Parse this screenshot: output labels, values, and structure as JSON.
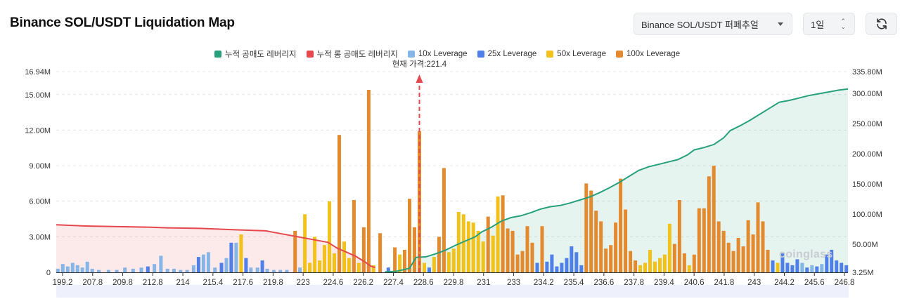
{
  "header": {
    "title": "Binance SOL/USDT Liquidation Map",
    "pair_select": "Binance SOL/USDT 퍼페추얼",
    "period_select": "1일"
  },
  "colors": {
    "cumShort": "#26a17b",
    "cumLong": "#e5484d",
    "lev10": "#86b6e8",
    "lev25": "#4f7fe8",
    "lev50": "#f2c21b",
    "lev100": "#e38a2f"
  },
  "chart_data": {
    "type": "bar",
    "legend": [
      {
        "key": "cumShort",
        "label": "누적 공매도 레버리지",
        "color": "#26a17b"
      },
      {
        "key": "cumLong",
        "label": "누적 롱 공매도 레버리지",
        "color": "#e5484d"
      },
      {
        "key": "lev10",
        "label": "10x Leverage",
        "color": "#86b6e8"
      },
      {
        "key": "lev25",
        "label": "25x Leverage",
        "color": "#4f7fe8"
      },
      {
        "key": "lev50",
        "label": "50x Leverage",
        "color": "#f2c21b"
      },
      {
        "key": "lev100",
        "label": "100x Leverage",
        "color": "#e38a2f"
      }
    ],
    "current_price_label": "현재 가격:221.4",
    "current_price": 221.4,
    "x_range": [
      199.2,
      247.6
    ],
    "x_ticks": [
      "199.2",
      "207.8",
      "209.8",
      "212.8",
      "214",
      "215.4",
      "217.6",
      "219.8",
      "223",
      "224.6",
      "226.2",
      "227.4",
      "228.6",
      "229.8",
      "231",
      "233",
      "234.2",
      "235.4",
      "236.6",
      "237.8",
      "239.4",
      "240.6",
      "241.8",
      "243",
      "244.2",
      "245.6",
      "246.8"
    ],
    "y_left": {
      "range": [
        0,
        16.94
      ],
      "ticks": [
        0,
        3,
        6,
        9,
        12,
        15,
        16.94
      ],
      "tick_labels": [
        "0",
        "3.00M",
        "6.00M",
        "9.00M",
        "12.00M",
        "15.00M",
        "16.94M"
      ]
    },
    "y_right": {
      "range": [
        3.25,
        335.8
      ],
      "ticks": [
        3.25,
        50,
        100,
        150,
        200,
        250,
        300,
        335.8
      ],
      "tick_labels": [
        "3.25M",
        "50.00M",
        "100.00M",
        "150.00M",
        "200.00M",
        "250.00M",
        "300.00M",
        "335.80M"
      ]
    },
    "bars": [
      {
        "x": 199.3,
        "lev": "10x",
        "v": 0.3
      },
      {
        "x": 199.6,
        "lev": "10x",
        "v": 0.7
      },
      {
        "x": 199.9,
        "lev": "10x",
        "v": 0.5
      },
      {
        "x": 200.2,
        "lev": "10x",
        "v": 0.8
      },
      {
        "x": 200.5,
        "lev": "10x",
        "v": 0.6
      },
      {
        "x": 200.8,
        "lev": "10x",
        "v": 0.4
      },
      {
        "x": 201.1,
        "lev": "10x",
        "v": 0.9
      },
      {
        "x": 201.4,
        "lev": "10x",
        "v": 0.3
      },
      {
        "x": 201.8,
        "lev": "10x",
        "v": 0.2
      },
      {
        "x": 202.4,
        "lev": "10x",
        "v": 0.2
      },
      {
        "x": 202.9,
        "lev": "10x",
        "v": 0.2
      },
      {
        "x": 203.4,
        "lev": "10x",
        "v": 0.4
      },
      {
        "x": 203.9,
        "lev": "10x",
        "v": 0.3
      },
      {
        "x": 204.4,
        "lev": "10x",
        "v": 0.4
      },
      {
        "x": 204.8,
        "lev": "25x",
        "v": 0.5
      },
      {
        "x": 205.2,
        "lev": "10x",
        "v": 0.7
      },
      {
        "x": 205.6,
        "lev": "10x",
        "v": 1.4
      },
      {
        "x": 206.0,
        "lev": "10x",
        "v": 0.3
      },
      {
        "x": 206.4,
        "lev": "10x",
        "v": 0.3
      },
      {
        "x": 206.8,
        "lev": "10x",
        "v": 0.2
      },
      {
        "x": 207.2,
        "lev": "10x",
        "v": 0.2
      },
      {
        "x": 207.6,
        "lev": "10x",
        "v": 0.6
      },
      {
        "x": 207.9,
        "lev": "25x",
        "v": 1.3
      },
      {
        "x": 208.2,
        "lev": "10x",
        "v": 1.5
      },
      {
        "x": 208.5,
        "lev": "10x",
        "v": 1.7
      },
      {
        "x": 208.9,
        "lev": "10x",
        "v": 0.4
      },
      {
        "x": 209.3,
        "lev": "25x",
        "v": 0.8
      },
      {
        "x": 209.6,
        "lev": "10x",
        "v": 1.2
      },
      {
        "x": 209.9,
        "lev": "25x",
        "v": 2.5
      },
      {
        "x": 210.2,
        "lev": "10x",
        "v": 2.5
      },
      {
        "x": 210.5,
        "lev": "50x",
        "v": 3.2
      },
      {
        "x": 210.8,
        "lev": "25x",
        "v": 1.2
      },
      {
        "x": 211.1,
        "lev": "10x",
        "v": 0.4
      },
      {
        "x": 211.5,
        "lev": "10x",
        "v": 0.4
      },
      {
        "x": 211.8,
        "lev": "25x",
        "v": 1.0
      },
      {
        "x": 212.1,
        "lev": "10x",
        "v": 0.3
      },
      {
        "x": 212.5,
        "lev": "10x",
        "v": 0.2
      },
      {
        "x": 212.9,
        "lev": "10x",
        "v": 0.2
      },
      {
        "x": 213.3,
        "lev": "10x",
        "v": 0.2
      },
      {
        "x": 213.8,
        "lev": "100x",
        "v": 3.5
      },
      {
        "x": 214.1,
        "lev": "10x",
        "v": 0.4
      },
      {
        "x": 214.4,
        "lev": "50x",
        "v": 4.9
      },
      {
        "x": 214.7,
        "lev": "50x",
        "v": 0.8
      },
      {
        "x": 215.0,
        "lev": "50x",
        "v": 3.0
      },
      {
        "x": 215.3,
        "lev": "50x",
        "v": 1.0
      },
      {
        "x": 215.6,
        "lev": "50x",
        "v": 2.3
      },
      {
        "x": 215.9,
        "lev": "50x",
        "v": 6.0
      },
      {
        "x": 216.2,
        "lev": "50x",
        "v": 1.6
      },
      {
        "x": 216.5,
        "lev": "100x",
        "v": 11.6
      },
      {
        "x": 216.8,
        "lev": "50x",
        "v": 2.6
      },
      {
        "x": 217.1,
        "lev": "50x",
        "v": 1.2
      },
      {
        "x": 217.4,
        "lev": "100x",
        "v": 6.1
      },
      {
        "x": 217.7,
        "lev": "50x",
        "v": 0.8
      },
      {
        "x": 218.0,
        "lev": "100x",
        "v": 3.8
      },
      {
        "x": 218.3,
        "lev": "100x",
        "v": 15.4
      },
      {
        "x": 218.6,
        "lev": "50x",
        "v": 0.6
      },
      {
        "x": 219.0,
        "lev": "100x",
        "v": 3.3
      },
      {
        "x": 219.5,
        "lev": "25x",
        "v": 0.4
      },
      {
        "x": 219.9,
        "lev": "100x",
        "v": 2.1
      },
      {
        "x": 220.2,
        "lev": "50x",
        "v": 1.5
      },
      {
        "x": 220.5,
        "lev": "100x",
        "v": 1.9
      },
      {
        "x": 220.8,
        "lev": "100x",
        "v": 6.2
      },
      {
        "x": 221.1,
        "lev": "100x",
        "v": 3.8
      },
      {
        "x": 221.4,
        "lev": "100x",
        "v": 11.9
      },
      {
        "x": 221.7,
        "lev": "50x",
        "v": 0.8
      },
      {
        "x": 222.0,
        "lev": "25x",
        "v": 0.4
      },
      {
        "x": 222.3,
        "lev": "50x",
        "v": 1.3
      },
      {
        "x": 222.6,
        "lev": "100x",
        "v": 3.0
      },
      {
        "x": 222.9,
        "lev": "100x",
        "v": 8.8
      },
      {
        "x": 223.2,
        "lev": "50x",
        "v": 1.7
      },
      {
        "x": 223.5,
        "lev": "50x",
        "v": 2.0
      },
      {
        "x": 223.8,
        "lev": "50x",
        "v": 5.1
      },
      {
        "x": 224.1,
        "lev": "50x",
        "v": 4.9
      },
      {
        "x": 224.4,
        "lev": "50x",
        "v": 4.3
      },
      {
        "x": 224.7,
        "lev": "50x",
        "v": 4.2
      },
      {
        "x": 225.0,
        "lev": "50x",
        "v": 3.5
      },
      {
        "x": 225.3,
        "lev": "50x",
        "v": 2.6
      },
      {
        "x": 225.6,
        "lev": "100x",
        "v": 4.7
      },
      {
        "x": 225.9,
        "lev": "50x",
        "v": 3.1
      },
      {
        "x": 226.2,
        "lev": "50x",
        "v": 6.4
      },
      {
        "x": 226.5,
        "lev": "100x",
        "v": 6.5
      },
      {
        "x": 226.8,
        "lev": "100x",
        "v": 3.7
      },
      {
        "x": 227.1,
        "lev": "100x",
        "v": 3.5
      },
      {
        "x": 227.4,
        "lev": "100x",
        "v": 1.5
      },
      {
        "x": 227.7,
        "lev": "100x",
        "v": 1.8
      },
      {
        "x": 228.0,
        "lev": "100x",
        "v": 3.9
      },
      {
        "x": 228.3,
        "lev": "100x",
        "v": 2.5
      },
      {
        "x": 228.6,
        "lev": "25x",
        "v": 0.8
      },
      {
        "x": 228.9,
        "lev": "100x",
        "v": 3.9
      },
      {
        "x": 229.2,
        "lev": "25x",
        "v": 0.9
      },
      {
        "x": 229.5,
        "lev": "25x",
        "v": 1.5
      },
      {
        "x": 229.8,
        "lev": "25x",
        "v": 0.5
      },
      {
        "x": 230.1,
        "lev": "25x",
        "v": 0.8
      },
      {
        "x": 230.4,
        "lev": "25x",
        "v": 1.2
      },
      {
        "x": 230.7,
        "lev": "25x",
        "v": 2.2
      },
      {
        "x": 231.0,
        "lev": "25x",
        "v": 1.7
      },
      {
        "x": 231.3,
        "lev": "25x",
        "v": 0.6
      },
      {
        "x": 231.6,
        "lev": "100x",
        "v": 7.5
      },
      {
        "x": 231.9,
        "lev": "100x",
        "v": 6.9
      },
      {
        "x": 232.2,
        "lev": "100x",
        "v": 5.2
      },
      {
        "x": 232.5,
        "lev": "100x",
        "v": 4.3
      },
      {
        "x": 232.8,
        "lev": "100x",
        "v": 2.0
      },
      {
        "x": 233.1,
        "lev": "100x",
        "v": 2.3
      },
      {
        "x": 233.4,
        "lev": "100x",
        "v": 4.2
      },
      {
        "x": 233.7,
        "lev": "100x",
        "v": 7.9
      },
      {
        "x": 234.0,
        "lev": "100x",
        "v": 5.3
      },
      {
        "x": 234.3,
        "lev": "100x",
        "v": 1.8
      },
      {
        "x": 234.6,
        "lev": "100x",
        "v": 1.0
      },
      {
        "x": 234.9,
        "lev": "50x",
        "v": 0.6
      },
      {
        "x": 235.2,
        "lev": "50x",
        "v": 0.8
      },
      {
        "x": 235.5,
        "lev": "50x",
        "v": 1.9
      },
      {
        "x": 235.8,
        "lev": "50x",
        "v": 0.9
      },
      {
        "x": 236.1,
        "lev": "50x",
        "v": 1.2
      },
      {
        "x": 236.4,
        "lev": "50x",
        "v": 1.5
      },
      {
        "x": 236.7,
        "lev": "50x",
        "v": 4.1
      },
      {
        "x": 237.0,
        "lev": "100x",
        "v": 2.4
      },
      {
        "x": 237.3,
        "lev": "100x",
        "v": 6.1
      },
      {
        "x": 237.6,
        "lev": "100x",
        "v": 1.6
      },
      {
        "x": 237.9,
        "lev": "50x",
        "v": 0.6
      },
      {
        "x": 238.2,
        "lev": "100x",
        "v": 1.5
      },
      {
        "x": 238.5,
        "lev": "100x",
        "v": 5.4
      },
      {
        "x": 238.8,
        "lev": "100x",
        "v": 5.4
      },
      {
        "x": 239.1,
        "lev": "100x",
        "v": 8.1
      },
      {
        "x": 239.4,
        "lev": "100x",
        "v": 9.0
      },
      {
        "x": 239.7,
        "lev": "100x",
        "v": 4.3
      },
      {
        "x": 240.0,
        "lev": "100x",
        "v": 3.5
      },
      {
        "x": 240.3,
        "lev": "100x",
        "v": 2.5
      },
      {
        "x": 240.6,
        "lev": "100x",
        "v": 1.8
      },
      {
        "x": 240.9,
        "lev": "100x",
        "v": 2.9
      },
      {
        "x": 241.2,
        "lev": "100x",
        "v": 2.2
      },
      {
        "x": 241.5,
        "lev": "100x",
        "v": 4.4
      },
      {
        "x": 241.8,
        "lev": "100x",
        "v": 3.2
      },
      {
        "x": 242.1,
        "lev": "100x",
        "v": 5.9
      },
      {
        "x": 242.4,
        "lev": "100x",
        "v": 4.3
      },
      {
        "x": 242.7,
        "lev": "100x",
        "v": 1.9
      },
      {
        "x": 243.0,
        "lev": "25x",
        "v": 1.0
      },
      {
        "x": 243.3,
        "lev": "50x",
        "v": 0.8
      },
      {
        "x": 243.6,
        "lev": "25x",
        "v": 1.6
      },
      {
        "x": 243.9,
        "lev": "25x",
        "v": 0.8
      },
      {
        "x": 244.2,
        "lev": "25x",
        "v": 0.6
      },
      {
        "x": 244.5,
        "lev": "25x",
        "v": 1.1
      },
      {
        "x": 244.8,
        "lev": "10x",
        "v": 0.8
      },
      {
        "x": 245.1,
        "lev": "25x",
        "v": 0.4
      },
      {
        "x": 245.4,
        "lev": "10x",
        "v": 0.6
      },
      {
        "x": 245.7,
        "lev": "25x",
        "v": 0.5
      },
      {
        "x": 246.0,
        "lev": "10x",
        "v": 0.7
      },
      {
        "x": 246.3,
        "lev": "25x",
        "v": 1.5
      },
      {
        "x": 246.6,
        "lev": "25x",
        "v": 1.9
      },
      {
        "x": 246.9,
        "lev": "25x",
        "v": 1.0
      },
      {
        "x": 247.2,
        "lev": "25x",
        "v": 0.8
      },
      {
        "x": 247.5,
        "lev": "25x",
        "v": 0.6
      }
    ],
    "cum_long": [
      [
        199.2,
        82
      ],
      [
        201,
        80
      ],
      [
        203,
        79
      ],
      [
        205,
        78
      ],
      [
        206,
        77
      ],
      [
        208,
        76
      ],
      [
        210,
        74
      ],
      [
        212,
        72
      ],
      [
        213,
        67
      ],
      [
        214,
        62
      ],
      [
        215,
        57
      ],
      [
        215.8,
        53
      ],
      [
        216.4,
        43
      ],
      [
        217,
        36
      ],
      [
        217.5,
        30
      ],
      [
        218.1,
        20
      ],
      [
        218.4,
        14
      ],
      [
        218.7,
        11
      ]
    ],
    "cum_short": [
      [
        219.3,
        4
      ],
      [
        220,
        5
      ],
      [
        220.8,
        10
      ],
      [
        221.2,
        28
      ],
      [
        221.8,
        29
      ],
      [
        222.4,
        34
      ],
      [
        223,
        40
      ],
      [
        223.6,
        48
      ],
      [
        224.2,
        55
      ],
      [
        224.8,
        62
      ],
      [
        225.2,
        70
      ],
      [
        225.8,
        78
      ],
      [
        226.4,
        88
      ],
      [
        227,
        94
      ],
      [
        227.6,
        97
      ],
      [
        228.2,
        102
      ],
      [
        228.8,
        108
      ],
      [
        229.4,
        112
      ],
      [
        230,
        114
      ],
      [
        230.6,
        118
      ],
      [
        231.2,
        123
      ],
      [
        231.8,
        128
      ],
      [
        232.4,
        135
      ],
      [
        233,
        143
      ],
      [
        233.6,
        152
      ],
      [
        234.2,
        162
      ],
      [
        234.8,
        172
      ],
      [
        235.4,
        178
      ],
      [
        236,
        182
      ],
      [
        236.6,
        186
      ],
      [
        237.2,
        190
      ],
      [
        237.8,
        198
      ],
      [
        238.2,
        206
      ],
      [
        238.8,
        210
      ],
      [
        239.4,
        215
      ],
      [
        240,
        226
      ],
      [
        240.4,
        238
      ],
      [
        241,
        246
      ],
      [
        241.6,
        255
      ],
      [
        242.2,
        265
      ],
      [
        242.8,
        275
      ],
      [
        243.4,
        285
      ],
      [
        244,
        288
      ],
      [
        244.6,
        292
      ],
      [
        245.2,
        296
      ],
      [
        245.8,
        299
      ],
      [
        246.4,
        302
      ],
      [
        247,
        305
      ],
      [
        247.6,
        307
      ]
    ]
  },
  "watermark": "coinglass"
}
